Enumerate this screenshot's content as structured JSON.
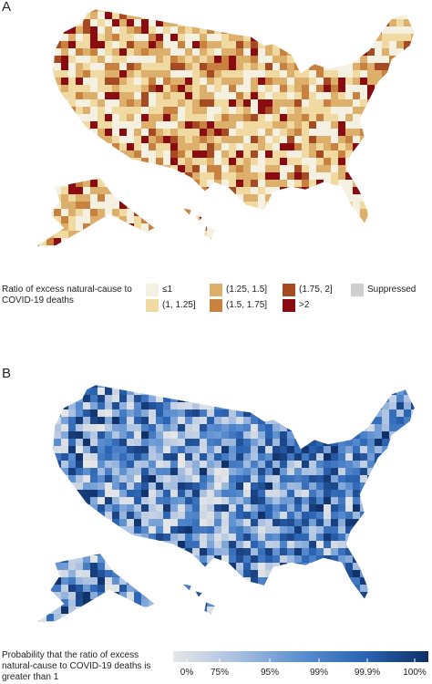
{
  "panels": [
    {
      "label": "A",
      "legend": {
        "title": "Ratio of excess natural-cause to COVID-19 deaths",
        "items": [
          {
            "label": "≤1",
            "color": "#f4f0e2"
          },
          {
            "label": "(1, 1.25]",
            "color": "#f1d9a2"
          },
          {
            "label": "(1.25, 1.5]",
            "color": "#dcb06b"
          },
          {
            "label": "(1.5, 1.75]",
            "color": "#c8813f"
          },
          {
            "label": "(1.75, 2]",
            "color": "#a54a22"
          },
          {
            "label": ">2",
            "color": "#8b0b13"
          },
          {
            "label": "Suppressed",
            "color": "#cfcfcf"
          }
        ]
      }
    },
    {
      "label": "B",
      "legend": {
        "title": "Probability that the ratio of excess natural-cause to COVID-19 deaths is greater than 1",
        "ticks": [
          "0%",
          "75%",
          "95%",
          "99%",
          "99.9%",
          "100%"
        ],
        "colors": [
          "#e6e6e6",
          "#a9c0e0",
          "#5b8fd0",
          "#2b64b4",
          "#0f2f66"
        ]
      }
    }
  ]
}
